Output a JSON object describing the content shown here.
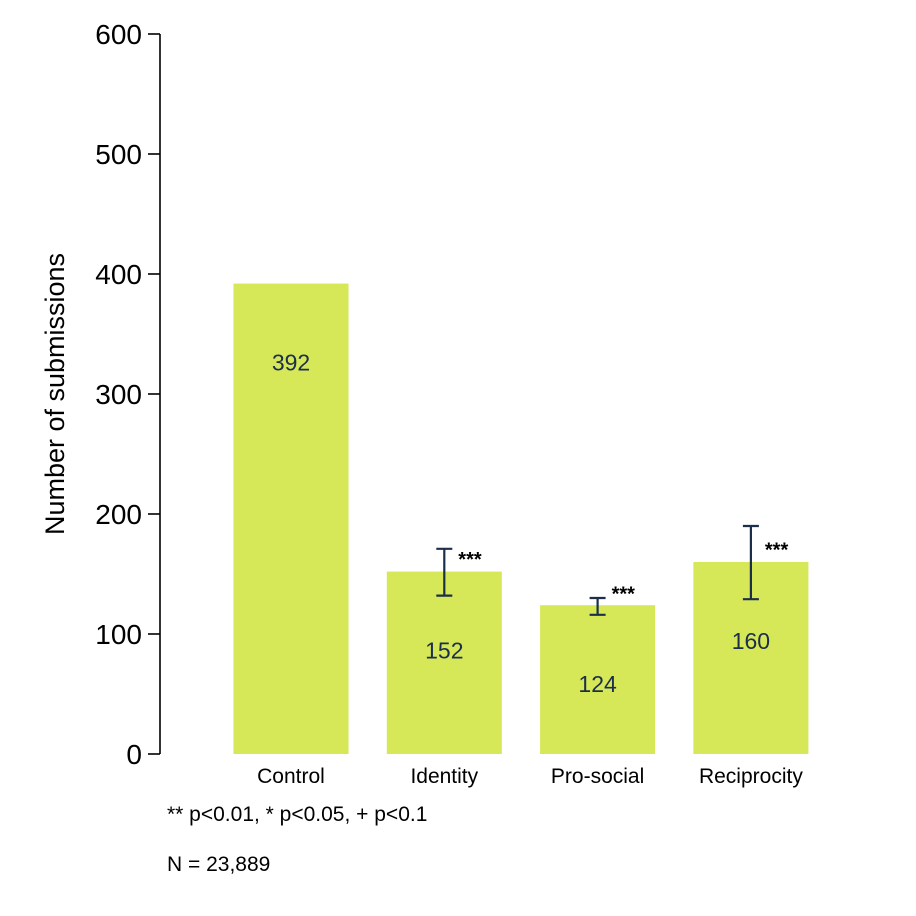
{
  "chart_data": {
    "type": "bar",
    "categories": [
      "Control",
      "Identity",
      "Pro-social",
      "Reciprocity"
    ],
    "values": [
      392,
      152,
      124,
      160
    ],
    "data_labels": [
      "392",
      "152",
      "124",
      "160"
    ],
    "error_bars": [
      null,
      {
        "low": 132,
        "high": 171
      },
      {
        "low": 116,
        "high": 130
      },
      {
        "low": 129,
        "high": 190
      }
    ],
    "significance": [
      "",
      "***",
      "***",
      "***"
    ],
    "ylabel": "Number of submissions",
    "xlabel": "",
    "ylim": [
      0,
      600
    ],
    "yticks": [
      0,
      100,
      200,
      300,
      400,
      500,
      600
    ],
    "grid": false,
    "legend": "none",
    "colors": {
      "bar": "#d6e757",
      "error_bar": "#1b2f4a",
      "data_label": "#1b2f4a",
      "axis": "#000000"
    }
  },
  "notes": {
    "significance": "** p<0.01, * p<0.05, + p<0.1",
    "sample_size": "N = 23,889"
  }
}
